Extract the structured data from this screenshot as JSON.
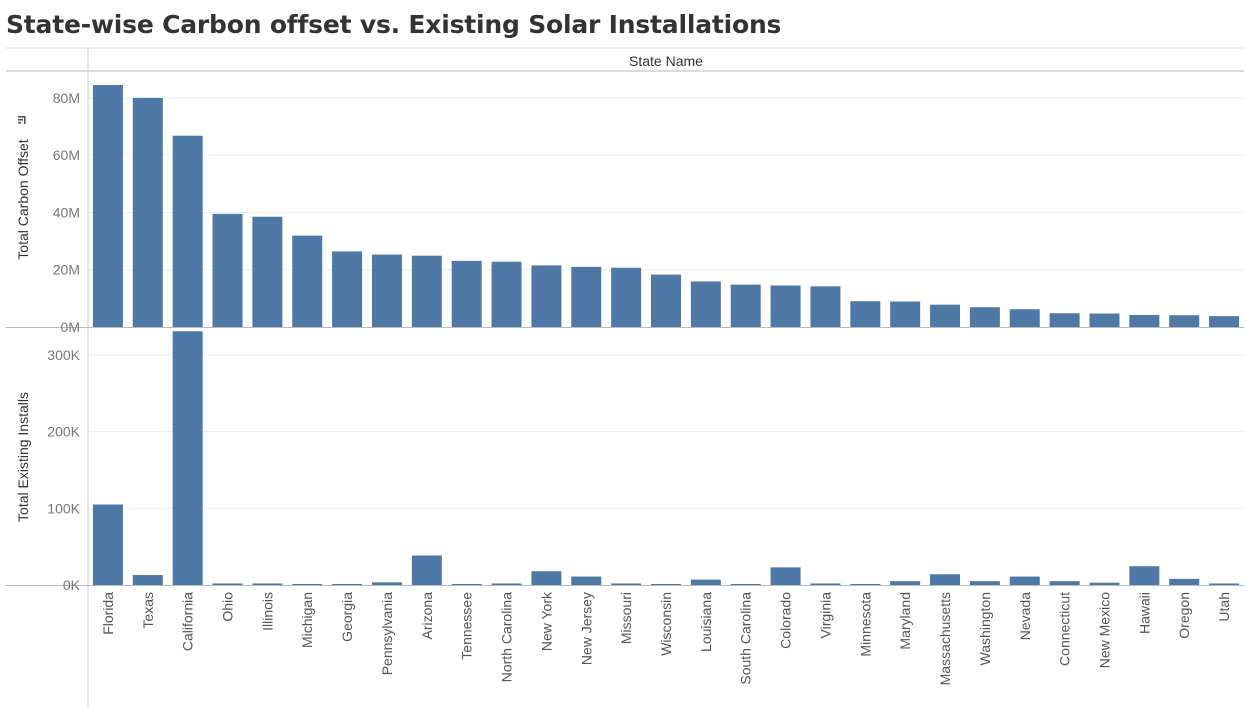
{
  "title": "State-wise Carbon offset vs. Existing Solar Installations",
  "header_label": "State Name",
  "colors": {
    "bar": "#4e79a7",
    "grid": "#eeeeee",
    "axis": "#bbbbbb"
  },
  "chart_data": {
    "type": "bar",
    "categories": [
      "Florida",
      "Texas",
      "California",
      "Ohio",
      "Illinois",
      "Michigan",
      "Georgia",
      "Pennsylvania",
      "Arizona",
      "Tennessee",
      "North Carolina",
      "New York",
      "New Jersey",
      "Missouri",
      "Wisconsin",
      "Louisiana",
      "South Carolina",
      "Colorado",
      "Virginia",
      "Minnesota",
      "Maryland",
      "Massachusetts",
      "Washington",
      "Nevada",
      "Connecticut",
      "New Mexico",
      "Hawaii",
      "Oregon",
      "Utah"
    ],
    "panels": [
      {
        "ylabel": "Total Carbon Offset",
        "sort_icon": "sort-descending-icon",
        "ylim": [
          0,
          88000000
        ],
        "ticks": [
          0,
          20000000,
          40000000,
          60000000,
          80000000
        ],
        "tick_labels": [
          "0M",
          "20M",
          "40M",
          "60M",
          "80M"
        ],
        "values": [
          84500000,
          80000000,
          66800000,
          39500000,
          38500000,
          31900000,
          26400000,
          25300000,
          24900000,
          23100000,
          22800000,
          21500000,
          21000000,
          20700000,
          18300000,
          15900000,
          14800000,
          14500000,
          14200000,
          9000000,
          8900000,
          7800000,
          6900000,
          6200000,
          4800000,
          4700000,
          4200000,
          4100000,
          3800000
        ]
      },
      {
        "ylabel": "Total Existing Installs",
        "ylim": [
          0,
          330000
        ],
        "ticks": [
          0,
          100000,
          200000,
          300000
        ],
        "tick_labels": [
          "0K",
          "100K",
          "200K",
          "300K"
        ],
        "values": [
          105000,
          13000,
          331000,
          2000,
          2000,
          1000,
          1000,
          3500,
          38500,
          500,
          2000,
          18000,
          11000,
          2000,
          500,
          7000,
          500,
          23000,
          2000,
          500,
          5000,
          14000,
          5000,
          11000,
          5000,
          3000,
          24500,
          8000,
          2000
        ]
      }
    ]
  }
}
